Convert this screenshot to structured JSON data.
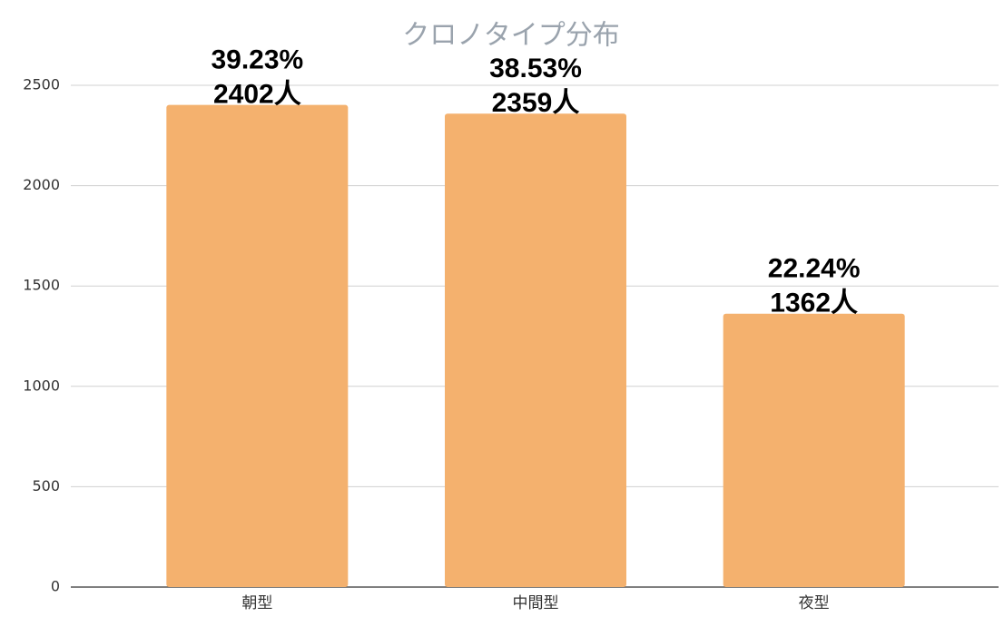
{
  "chart_data": {
    "type": "bar",
    "title": "クロノタイプ分布",
    "categories": [
      "朝型",
      "中間型",
      "夜型"
    ],
    "values": [
      2402,
      2359,
      1362
    ],
    "value_labels": [
      "2402人",
      "2359人",
      "1362人"
    ],
    "share_labels": [
      "39.23%",
      "38.53%",
      "22.24%"
    ],
    "color": "#f4b16e",
    "ylim": [
      0,
      2500
    ],
    "yticks": [
      0,
      500,
      1000,
      1500,
      2000,
      2500
    ],
    "grid": true
  }
}
